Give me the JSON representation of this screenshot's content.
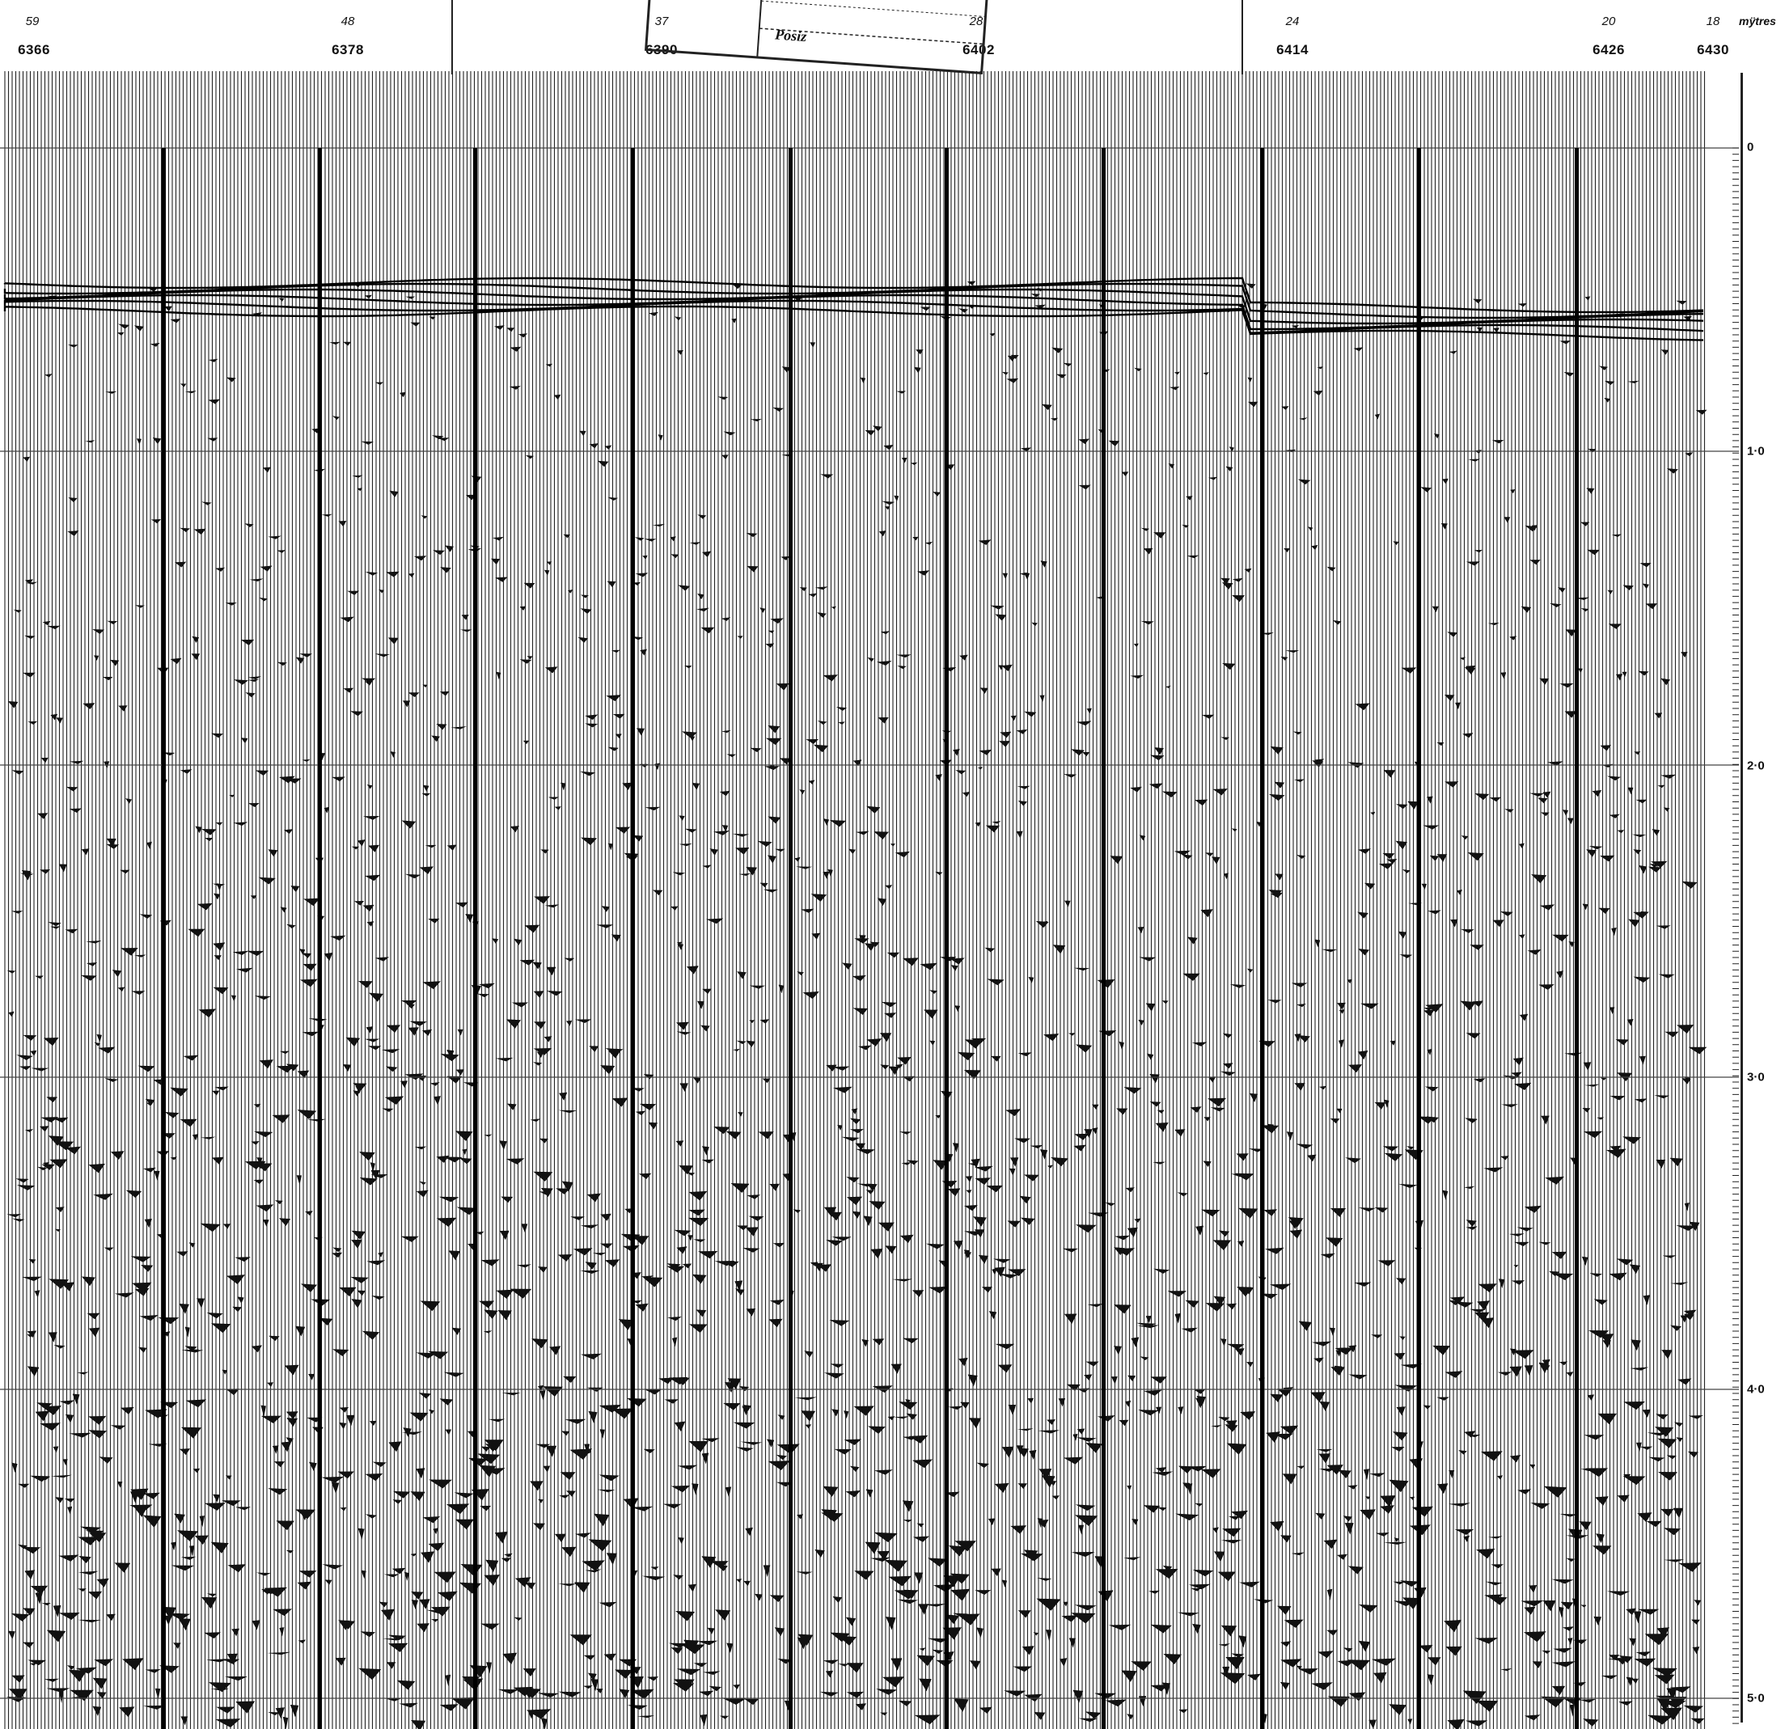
{
  "header": {
    "line_numbers": [
      {
        "label": "59",
        "pos": "left-edge"
      },
      {
        "label": "48"
      },
      {
        "label": "37"
      },
      {
        "label": "28"
      },
      {
        "label": "24"
      },
      {
        "label": "20"
      },
      {
        "label": "18"
      }
    ],
    "shot_points": [
      "6366",
      "6378",
      "6390",
      "6402",
      "6414",
      "6426",
      "6430"
    ],
    "units_label": "mÿtres"
  },
  "stamp": {
    "text": "Posiz"
  },
  "time_axis": {
    "labels": [
      "0",
      "1·0",
      "2·0",
      "3·0",
      "4·0",
      "5·0"
    ]
  },
  "colors": {
    "ink": "#111111",
    "paper": "#ffffff",
    "grid": "#555555"
  }
}
